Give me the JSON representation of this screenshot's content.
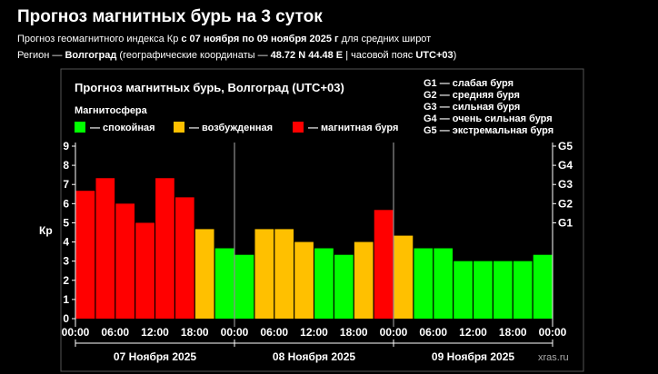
{
  "page": {
    "title": "Прогноз магнитных бурь на 3 суток",
    "line1": {
      "prefix": "Прогноз геомагнитного индекса Кр ",
      "range": "с 07 ноября по 09 ноября 2025 г",
      "suffix": " для средних широт"
    },
    "line2": {
      "prefix": "Регион — ",
      "region": "Волгоград",
      "middle": " (географические координаты — ",
      "coords": "48.72 N 44.48 E",
      "tz_prefix": " | часовой пояс ",
      "tz": "UTC+03",
      "suffix": ")"
    }
  },
  "colors": {
    "background": "#000000",
    "calm": "#00ff00",
    "excited": "#ffc000",
    "storm": "#ff0000",
    "grid": "#ffffff"
  },
  "chart_data": {
    "type": "bar",
    "title": "Прогноз магнитных бурь, Волгоград (UTC+03)",
    "legend_title": "Магнитосфера",
    "legend": [
      {
        "label": "— спокойная",
        "color": "#00ff00"
      },
      {
        "label": "— возбужденная",
        "color": "#ffc000"
      },
      {
        "label": "— магнитная буря",
        "color": "#ff0000"
      }
    ],
    "g_scale": [
      "G1 — слабая буря",
      "G2 — средняя буря",
      "G3 — сильная буря",
      "G4 — очень сильная буря",
      "G5 — экстремальная буря"
    ],
    "ylabel": "Кр",
    "ylim": [
      0,
      9
    ],
    "yticks": [
      "0",
      "1",
      "2",
      "3",
      "4",
      "5",
      "6",
      "7",
      "8",
      "9"
    ],
    "right_ticks": [
      {
        "label": "G1",
        "value": 5
      },
      {
        "label": "G2",
        "value": 6
      },
      {
        "label": "G3",
        "value": 7
      },
      {
        "label": "G4",
        "value": 8
      },
      {
        "label": "G5",
        "value": 9
      }
    ],
    "x_tick_labels": [
      "00:00",
      "06:00",
      "12:00",
      "18:00",
      "00:00",
      "06:00",
      "12:00",
      "18:00",
      "00:00",
      "06:00",
      "12:00",
      "18:00",
      "00:00"
    ],
    "days": [
      "07 Ноября 2025",
      "08 Ноября 2025",
      "09 Ноября 2025"
    ],
    "bars_per_day": 8,
    "values": [
      6.67,
      7.33,
      6.0,
      5.0,
      7.33,
      6.33,
      4.67,
      3.67,
      3.33,
      4.67,
      4.67,
      4.0,
      3.67,
      3.33,
      4.0,
      5.67,
      4.33,
      3.67,
      3.67,
      3.0,
      3.0,
      3.0,
      3.0,
      3.33
    ],
    "levels": [
      "storm",
      "storm",
      "storm",
      "storm",
      "storm",
      "storm",
      "excited",
      "calm",
      "calm",
      "excited",
      "excited",
      "excited",
      "calm",
      "calm",
      "excited",
      "storm",
      "excited",
      "calm",
      "calm",
      "calm",
      "calm",
      "calm",
      "calm",
      "calm"
    ],
    "watermark": "xras.ru"
  }
}
